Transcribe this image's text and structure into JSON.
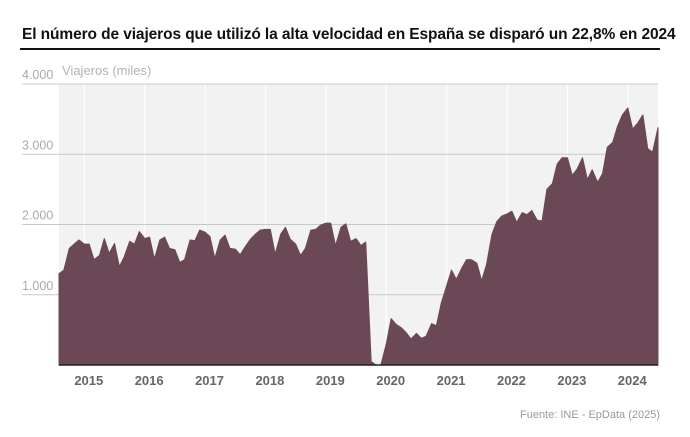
{
  "title": "El número de viajeros que utilizó la alta velocidad en España se disparó un 22,8% en 2024",
  "source": "Fuente: INE - EpData (2025)",
  "chart_data": {
    "type": "area",
    "title": "El número de viajeros que utilizó la alta velocidad en España se disparó un 22,8% en 2024",
    "ylabel": "Viajeros (miles)",
    "ylim": [
      0,
      4000
    ],
    "yticks": [
      {
        "value": 0,
        "label": ""
      },
      {
        "value": 1000,
        "label": "1.000"
      },
      {
        "value": 2000,
        "label": "2.000"
      },
      {
        "value": 3000,
        "label": "3.000"
      },
      {
        "value": 4000,
        "label": "4.000"
      }
    ],
    "xlim": [
      2014.54,
      2024.46
    ],
    "xticks": [
      {
        "value": 2015,
        "label": "2015"
      },
      {
        "value": 2016,
        "label": "2016"
      },
      {
        "value": 2017,
        "label": "2017"
      },
      {
        "value": 2018,
        "label": "2018"
      },
      {
        "value": 2019,
        "label": "2019"
      },
      {
        "value": 2020,
        "label": "2020"
      },
      {
        "value": 2021,
        "label": "2021"
      },
      {
        "value": 2022,
        "label": "2022"
      },
      {
        "value": 2023,
        "label": "2023"
      },
      {
        "value": 2024,
        "label": "2024"
      }
    ],
    "grid": true,
    "color": "#6b4855",
    "series": [
      {
        "x": [
          2014.54,
          2014.62,
          2014.71,
          2014.79,
          2014.87,
          2014.96,
          2015.04,
          2015.12,
          2015.21,
          2015.29,
          2015.37,
          2015.46,
          2015.54,
          2015.62,
          2015.71,
          2015.79,
          2015.87,
          2015.96,
          2016.04,
          2016.12,
          2016.21,
          2016.29,
          2016.37,
          2016.46,
          2016.54,
          2016.62,
          2016.71,
          2016.79,
          2016.87,
          2016.96,
          2017.04,
          2017.12,
          2017.21,
          2017.29,
          2017.37,
          2017.46,
          2017.54,
          2017.62,
          2017.71,
          2017.79,
          2017.87,
          2017.96,
          2018.04,
          2018.12,
          2018.21,
          2018.29,
          2018.37,
          2018.46,
          2018.54,
          2018.62,
          2018.71,
          2018.79,
          2018.87,
          2018.96,
          2019.04,
          2019.12,
          2019.21,
          2019.29,
          2019.37,
          2019.46,
          2019.54,
          2019.62,
          2019.71,
          2019.79,
          2019.87,
          2019.96,
          2020.04,
          2020.12,
          2020.21,
          2020.29,
          2020.37,
          2020.46,
          2020.54,
          2020.62,
          2020.71,
          2020.79,
          2020.87,
          2020.96,
          2021.04,
          2021.12,
          2021.21,
          2021.29,
          2021.37,
          2021.46,
          2021.54,
          2021.62,
          2021.71,
          2021.79,
          2021.87,
          2021.96,
          2022.04,
          2022.12,
          2022.21,
          2022.29,
          2022.37,
          2022.46,
          2022.54,
          2022.62,
          2022.71,
          2022.79,
          2022.87,
          2022.96,
          2023.04,
          2023.12,
          2023.21,
          2023.29,
          2023.37,
          2023.46,
          2023.54,
          2023.62,
          2023.71,
          2023.79,
          2023.87,
          2023.96,
          2024.04,
          2024.12,
          2024.21,
          2024.29,
          2024.37,
          2024.46
        ],
        "y": [
          1300,
          1350,
          1660,
          1720,
          1780,
          1720,
          1720,
          1500,
          1560,
          1800,
          1590,
          1730,
          1400,
          1540,
          1760,
          1720,
          1900,
          1800,
          1820,
          1510,
          1780,
          1820,
          1660,
          1640,
          1460,
          1500,
          1780,
          1770,
          1920,
          1890,
          1830,
          1520,
          1780,
          1850,
          1660,
          1650,
          1570,
          1680,
          1790,
          1860,
          1920,
          1930,
          1930,
          1580,
          1860,
          1960,
          1790,
          1720,
          1560,
          1660,
          1920,
          1930,
          1990,
          2020,
          2020,
          1700,
          1960,
          2010,
          1760,
          1800,
          1700,
          1750,
          50,
          0,
          0,
          300,
          660,
          580,
          530,
          460,
          370,
          450,
          380,
          410,
          590,
          560,
          880,
          1130,
          1350,
          1220,
          1380,
          1500,
          1500,
          1450,
          1200,
          1430,
          1860,
          2040,
          2120,
          2150,
          2190,
          2030,
          2170,
          2140,
          2200,
          2060,
          2050,
          2500,
          2580,
          2860,
          2950,
          2950,
          2700,
          2790,
          2950,
          2640,
          2780,
          2600,
          2720,
          3100,
          3170,
          3400,
          3560,
          3660,
          3360,
          3440,
          3560,
          3080,
          3030,
          3380
        ]
      }
    ]
  }
}
